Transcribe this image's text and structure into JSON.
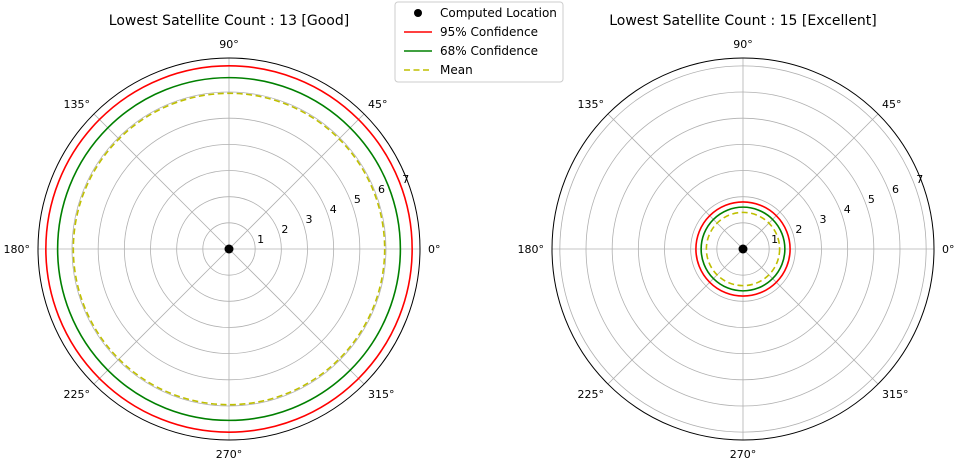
{
  "legend": {
    "placement": "top-center",
    "entries": [
      {
        "label": "Computed Location",
        "style": "marker",
        "color": "#000000"
      },
      {
        "label": "95% Confidence",
        "style": "solid",
        "color": "#ff0000"
      },
      {
        "label": "68% Confidence",
        "style": "solid",
        "color": "#008000"
      },
      {
        "label": "Mean",
        "style": "dashed",
        "color": "#bfbf00"
      }
    ]
  },
  "chart_data": [
    {
      "type": "polar",
      "title": "Lowest Satellite Count : 13 [Good]",
      "rlim": [
        0,
        7.3
      ],
      "r_ticks": [
        "1",
        "2",
        "3",
        "4",
        "5",
        "6",
        "7"
      ],
      "theta_ticks": [
        "0°",
        "45°",
        "90°",
        "135°",
        "180°",
        "225°",
        "270°",
        "315°"
      ],
      "grid": true,
      "series": [
        {
          "name": "Computed Location",
          "kind": "point",
          "r": 0,
          "color": "#000000"
        },
        {
          "name": "95% Confidence",
          "kind": "circle",
          "r": 7.0,
          "color": "#ff0000"
        },
        {
          "name": "68% Confidence",
          "kind": "circle",
          "r": 6.55,
          "color": "#008000"
        },
        {
          "name": "Mean",
          "kind": "circle",
          "r": 5.95,
          "color": "#bfbf00",
          "dashed": true
        }
      ]
    },
    {
      "type": "polar",
      "title": "Lowest Satellite Count : 15 [Excellent]",
      "rlim": [
        0,
        7.3
      ],
      "r_ticks": [
        "1",
        "2",
        "3",
        "4",
        "5",
        "6",
        "7"
      ],
      "theta_ticks": [
        "0°",
        "45°",
        "90°",
        "135°",
        "180°",
        "225°",
        "270°",
        "315°"
      ],
      "grid": true,
      "series": [
        {
          "name": "Computed Location",
          "kind": "point",
          "r": 0,
          "color": "#000000"
        },
        {
          "name": "95% Confidence",
          "kind": "circle",
          "r": 1.8,
          "color": "#ff0000"
        },
        {
          "name": "68% Confidence",
          "kind": "circle",
          "r": 1.6,
          "color": "#008000"
        },
        {
          "name": "Mean",
          "kind": "circle",
          "r": 1.4,
          "color": "#bfbf00",
          "dashed": true
        }
      ]
    }
  ]
}
